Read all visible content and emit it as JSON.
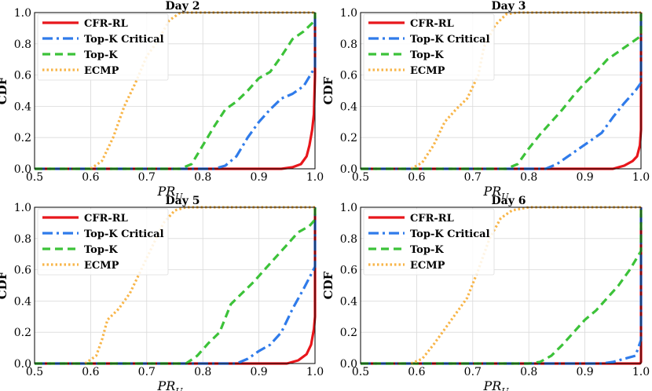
{
  "chart_data": [
    {
      "type": "line",
      "title": "Day 2",
      "xlabel": "PR_U",
      "ylabel": "CDF",
      "xlim": [
        0.5,
        1.0
      ],
      "ylim": [
        0.0,
        1.0
      ],
      "xticks": [
        "0.5",
        "0.6",
        "0.7",
        "0.8",
        "0.9",
        "1.0"
      ],
      "yticks": [
        "0.0",
        "0.2",
        "0.4",
        "0.6",
        "0.8",
        "1.0"
      ],
      "series": [
        {
          "name": "CFR-RL",
          "color": "#e8161b",
          "dash": "",
          "points": [
            [
              0.5,
              0
            ],
            [
              0.94,
              0
            ],
            [
              0.96,
              0.01
            ],
            [
              0.975,
              0.03
            ],
            [
              0.985,
              0.08
            ],
            [
              0.99,
              0.15
            ],
            [
              0.995,
              0.25
            ],
            [
              0.998,
              0.35
            ],
            [
              1.0,
              0.6
            ],
            [
              1.0,
              1.0
            ]
          ]
        },
        {
          "name": "Top-K Critical",
          "color": "#2f7bea",
          "dash": "13 5 3 5",
          "points": [
            [
              0.5,
              0
            ],
            [
              0.82,
              0
            ],
            [
              0.84,
              0.02
            ],
            [
              0.86,
              0.08
            ],
            [
              0.88,
              0.2
            ],
            [
              0.9,
              0.3
            ],
            [
              0.92,
              0.38
            ],
            [
              0.94,
              0.45
            ],
            [
              0.96,
              0.48
            ],
            [
              0.98,
              0.53
            ],
            [
              1.0,
              0.65
            ],
            [
              1.0,
              1.0
            ]
          ]
        },
        {
          "name": "Top-K",
          "color": "#3cc239",
          "dash": "10 6",
          "points": [
            [
              0.5,
              0
            ],
            [
              0.76,
              0
            ],
            [
              0.78,
              0.03
            ],
            [
              0.8,
              0.15
            ],
            [
              0.82,
              0.27
            ],
            [
              0.84,
              0.38
            ],
            [
              0.86,
              0.43
            ],
            [
              0.88,
              0.5
            ],
            [
              0.9,
              0.58
            ],
            [
              0.92,
              0.62
            ],
            [
              0.94,
              0.72
            ],
            [
              0.96,
              0.83
            ],
            [
              0.98,
              0.88
            ],
            [
              1.0,
              0.95
            ],
            [
              1.0,
              1.0
            ]
          ]
        },
        {
          "name": "ECMP",
          "color": "#f8b548",
          "dash": "2.5 3",
          "points": [
            [
              0.6,
              0
            ],
            [
              0.62,
              0.05
            ],
            [
              0.64,
              0.2
            ],
            [
              0.66,
              0.4
            ],
            [
              0.68,
              0.55
            ],
            [
              0.7,
              0.72
            ],
            [
              0.72,
              0.82
            ],
            [
              0.74,
              0.95
            ],
            [
              0.76,
              1.0
            ],
            [
              1.0,
              1.0
            ]
          ]
        }
      ],
      "legend": [
        "CFR-RL",
        "Top-K Critical",
        "Top-K",
        "ECMP"
      ]
    },
    {
      "type": "line",
      "title": "Day 3",
      "xlabel": "PR_U",
      "ylabel": "CDF",
      "xlim": [
        0.5,
        1.0
      ],
      "ylim": [
        0.0,
        1.0
      ],
      "xticks": [
        "0.5",
        "0.6",
        "0.7",
        "0.8",
        "0.9",
        "1.0"
      ],
      "yticks": [
        "0.0",
        "0.2",
        "0.4",
        "0.6",
        "0.8",
        "1.0"
      ],
      "series": [
        {
          "name": "CFR-RL",
          "color": "#e8161b",
          "dash": "",
          "points": [
            [
              0.5,
              0
            ],
            [
              0.95,
              0
            ],
            [
              0.97,
              0.02
            ],
            [
              0.985,
              0.05
            ],
            [
              0.993,
              0.08
            ],
            [
              0.998,
              0.15
            ],
            [
              1.0,
              0.25
            ],
            [
              1.0,
              1.0
            ]
          ]
        },
        {
          "name": "Top-K Critical",
          "color": "#2f7bea",
          "dash": "13 5 3 5",
          "points": [
            [
              0.5,
              0
            ],
            [
              0.83,
              0
            ],
            [
              0.85,
              0.03
            ],
            [
              0.87,
              0.08
            ],
            [
              0.89,
              0.13
            ],
            [
              0.91,
              0.18
            ],
            [
              0.93,
              0.23
            ],
            [
              0.95,
              0.33
            ],
            [
              0.97,
              0.42
            ],
            [
              0.99,
              0.5
            ],
            [
              1.0,
              0.55
            ],
            [
              1.0,
              1.0
            ]
          ]
        },
        {
          "name": "Top-K",
          "color": "#3cc239",
          "dash": "10 6",
          "points": [
            [
              0.5,
              0
            ],
            [
              0.76,
              0
            ],
            [
              0.78,
              0.03
            ],
            [
              0.8,
              0.13
            ],
            [
              0.82,
              0.22
            ],
            [
              0.84,
              0.3
            ],
            [
              0.86,
              0.38
            ],
            [
              0.88,
              0.47
            ],
            [
              0.9,
              0.55
            ],
            [
              0.92,
              0.62
            ],
            [
              0.94,
              0.7
            ],
            [
              0.96,
              0.75
            ],
            [
              0.98,
              0.8
            ],
            [
              1.0,
              0.85
            ],
            [
              1.0,
              1.0
            ]
          ]
        },
        {
          "name": "ECMP",
          "color": "#f8b548",
          "dash": "2.5 3",
          "points": [
            [
              0.59,
              0
            ],
            [
              0.61,
              0.04
            ],
            [
              0.63,
              0.15
            ],
            [
              0.65,
              0.3
            ],
            [
              0.67,
              0.38
            ],
            [
              0.69,
              0.45
            ],
            [
              0.71,
              0.6
            ],
            [
              0.72,
              0.78
            ],
            [
              0.74,
              0.92
            ],
            [
              0.76,
              0.99
            ],
            [
              0.78,
              1.0
            ],
            [
              1.0,
              1.0
            ]
          ]
        }
      ],
      "legend": [
        "CFR-RL",
        "Top-K Critical",
        "Top-K",
        "ECMP"
      ]
    },
    {
      "type": "line",
      "title": "Day 5",
      "xlabel": "PR_U",
      "ylabel": "CDF",
      "xlim": [
        0.5,
        1.0
      ],
      "ylim": [
        0.0,
        1.0
      ],
      "xticks": [
        "0.5",
        "0.6",
        "0.7",
        "0.8",
        "0.9",
        "1.0"
      ],
      "yticks": [
        "0.0",
        "0.2",
        "0.4",
        "0.6",
        "0.8",
        "1.0"
      ],
      "series": [
        {
          "name": "CFR-RL",
          "color": "#e8161b",
          "dash": "",
          "points": [
            [
              0.5,
              0
            ],
            [
              0.95,
              0
            ],
            [
              0.97,
              0.02
            ],
            [
              0.985,
              0.06
            ],
            [
              0.993,
              0.12
            ],
            [
              0.998,
              0.22
            ],
            [
              1.0,
              0.3
            ],
            [
              1.0,
              1.0
            ]
          ]
        },
        {
          "name": "Top-K Critical",
          "color": "#2f7bea",
          "dash": "13 5 3 5",
          "points": [
            [
              0.5,
              0
            ],
            [
              0.86,
              0
            ],
            [
              0.88,
              0.03
            ],
            [
              0.9,
              0.08
            ],
            [
              0.92,
              0.12
            ],
            [
              0.94,
              0.2
            ],
            [
              0.96,
              0.35
            ],
            [
              0.98,
              0.48
            ],
            [
              0.99,
              0.55
            ],
            [
              1.0,
              0.62
            ],
            [
              1.0,
              1.0
            ]
          ]
        },
        {
          "name": "Top-K",
          "color": "#3cc239",
          "dash": "10 6",
          "points": [
            [
              0.5,
              0
            ],
            [
              0.77,
              0
            ],
            [
              0.79,
              0.05
            ],
            [
              0.81,
              0.13
            ],
            [
              0.83,
              0.2
            ],
            [
              0.85,
              0.38
            ],
            [
              0.87,
              0.45
            ],
            [
              0.89,
              0.52
            ],
            [
              0.91,
              0.6
            ],
            [
              0.93,
              0.68
            ],
            [
              0.95,
              0.76
            ],
            [
              0.97,
              0.84
            ],
            [
              0.99,
              0.88
            ],
            [
              1.0,
              0.92
            ],
            [
              1.0,
              1.0
            ]
          ]
        },
        {
          "name": "ECMP",
          "color": "#f8b548",
          "dash": "2.5 3",
          "points": [
            [
              0.59,
              0
            ],
            [
              0.61,
              0.05
            ],
            [
              0.62,
              0.15
            ],
            [
              0.63,
              0.28
            ],
            [
              0.65,
              0.35
            ],
            [
              0.67,
              0.45
            ],
            [
              0.69,
              0.6
            ],
            [
              0.71,
              0.75
            ],
            [
              0.73,
              0.9
            ],
            [
              0.75,
              0.98
            ],
            [
              0.77,
              1.0
            ],
            [
              1.0,
              1.0
            ]
          ]
        }
      ],
      "legend": [
        "CFR-RL",
        "Top-K Critical",
        "Top-K",
        "ECMP"
      ]
    },
    {
      "type": "line",
      "title": "Day 6",
      "xlabel": "PR_U",
      "ylabel": "CDF",
      "xlim": [
        0.5,
        1.0
      ],
      "ylim": [
        0.0,
        1.0
      ],
      "xticks": [
        "0.5",
        "0.6",
        "0.7",
        "0.8",
        "0.9",
        "1.0"
      ],
      "yticks": [
        "0.0",
        "0.2",
        "0.4",
        "0.6",
        "0.8",
        "1.0"
      ],
      "series": [
        {
          "name": "CFR-RL",
          "color": "#e8161b",
          "dash": "",
          "points": [
            [
              0.5,
              0
            ],
            [
              0.998,
              0
            ],
            [
              1.0,
              0.01
            ],
            [
              1.0,
              1.0
            ]
          ]
        },
        {
          "name": "Top-K Critical",
          "color": "#2f7bea",
          "dash": "13 5 3 5",
          "points": [
            [
              0.5,
              0
            ],
            [
              0.93,
              0
            ],
            [
              0.95,
              0.01
            ],
            [
              0.97,
              0.03
            ],
            [
              0.99,
              0.05
            ],
            [
              1.0,
              0.15
            ],
            [
              1.0,
              1.0
            ]
          ]
        },
        {
          "name": "Top-K",
          "color": "#3cc239",
          "dash": "10 6",
          "points": [
            [
              0.5,
              0
            ],
            [
              0.8,
              0
            ],
            [
              0.82,
              0.01
            ],
            [
              0.84,
              0.05
            ],
            [
              0.86,
              0.12
            ],
            [
              0.88,
              0.2
            ],
            [
              0.9,
              0.28
            ],
            [
              0.92,
              0.34
            ],
            [
              0.94,
              0.42
            ],
            [
              0.96,
              0.5
            ],
            [
              0.98,
              0.6
            ],
            [
              1.0,
              0.72
            ],
            [
              1.0,
              1.0
            ]
          ]
        },
        {
          "name": "ECMP",
          "color": "#f8b548",
          "dash": "2.5 3",
          "points": [
            [
              0.59,
              0
            ],
            [
              0.61,
              0.03
            ],
            [
              0.63,
              0.12
            ],
            [
              0.65,
              0.22
            ],
            [
              0.67,
              0.32
            ],
            [
              0.69,
              0.42
            ],
            [
              0.71,
              0.6
            ],
            [
              0.73,
              0.8
            ],
            [
              0.75,
              0.93
            ],
            [
              0.77,
              0.98
            ],
            [
              0.8,
              1.0
            ],
            [
              1.0,
              1.0
            ]
          ]
        }
      ],
      "legend": [
        "CFR-RL",
        "Top-K Critical",
        "Top-K",
        "ECMP"
      ]
    }
  ]
}
